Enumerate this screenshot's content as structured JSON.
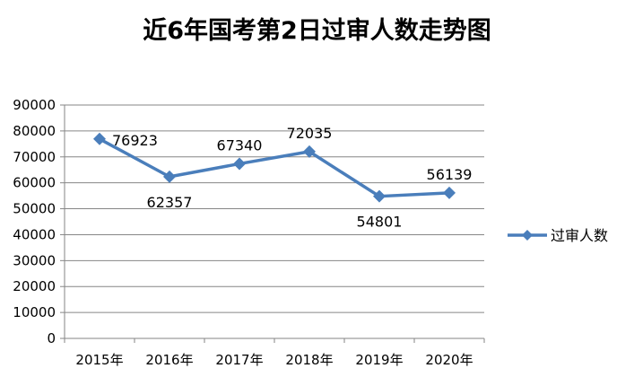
{
  "chart_data": {
    "type": "line",
    "title": "近6年国考第2日过审人数走势图",
    "categories": [
      "2015年",
      "2016年",
      "2017年",
      "2018年",
      "2019年",
      "2020年"
    ],
    "series": [
      {
        "name": "过审人数",
        "values": [
          76923,
          62357,
          67340,
          72035,
          54801,
          56139
        ],
        "color": "#4A7EBB",
        "marker": "diamond"
      }
    ],
    "y_ticks": [
      "0",
      "10000",
      "20000",
      "30000",
      "40000",
      "50000",
      "60000",
      "70000",
      "80000",
      "90000"
    ],
    "ylim": [
      0,
      90000
    ],
    "grid": true,
    "legend": "right",
    "data_label_placement": [
      "right",
      "below",
      "above",
      "above",
      "below",
      "above"
    ]
  }
}
